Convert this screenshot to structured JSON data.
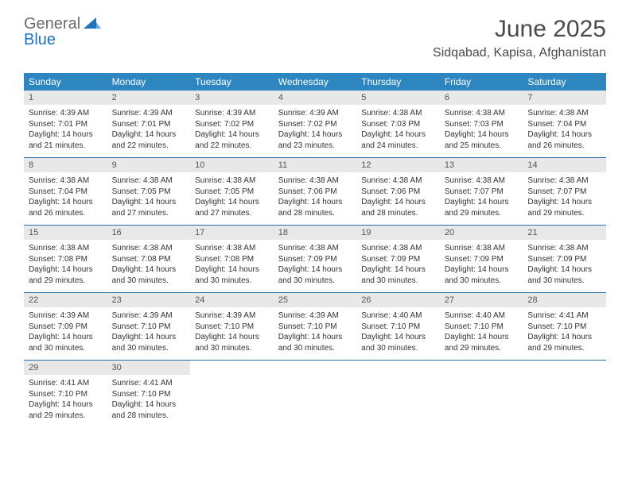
{
  "brand": {
    "name_part1": "General",
    "name_part2": "Blue"
  },
  "title": "June 2025",
  "location": "Sidqabad, Kapisa, Afghanistan",
  "colors": {
    "header_bg": "#2e86c1",
    "daynum_bg": "#e8e8e8",
    "week_divider": "#2e6da4",
    "logo_gray": "#6b6b6b",
    "logo_blue": "#1e73be",
    "title_color": "#4a4a4a"
  },
  "weekdays": [
    "Sunday",
    "Monday",
    "Tuesday",
    "Wednesday",
    "Thursday",
    "Friday",
    "Saturday"
  ],
  "weeks": [
    [
      {
        "day": "1",
        "sunrise": "Sunrise: 4:39 AM",
        "sunset": "Sunset: 7:01 PM",
        "daylight": "Daylight: 14 hours and 21 minutes."
      },
      {
        "day": "2",
        "sunrise": "Sunrise: 4:39 AM",
        "sunset": "Sunset: 7:01 PM",
        "daylight": "Daylight: 14 hours and 22 minutes."
      },
      {
        "day": "3",
        "sunrise": "Sunrise: 4:39 AM",
        "sunset": "Sunset: 7:02 PM",
        "daylight": "Daylight: 14 hours and 22 minutes."
      },
      {
        "day": "4",
        "sunrise": "Sunrise: 4:39 AM",
        "sunset": "Sunset: 7:02 PM",
        "daylight": "Daylight: 14 hours and 23 minutes."
      },
      {
        "day": "5",
        "sunrise": "Sunrise: 4:38 AM",
        "sunset": "Sunset: 7:03 PM",
        "daylight": "Daylight: 14 hours and 24 minutes."
      },
      {
        "day": "6",
        "sunrise": "Sunrise: 4:38 AM",
        "sunset": "Sunset: 7:03 PM",
        "daylight": "Daylight: 14 hours and 25 minutes."
      },
      {
        "day": "7",
        "sunrise": "Sunrise: 4:38 AM",
        "sunset": "Sunset: 7:04 PM",
        "daylight": "Daylight: 14 hours and 26 minutes."
      }
    ],
    [
      {
        "day": "8",
        "sunrise": "Sunrise: 4:38 AM",
        "sunset": "Sunset: 7:04 PM",
        "daylight": "Daylight: 14 hours and 26 minutes."
      },
      {
        "day": "9",
        "sunrise": "Sunrise: 4:38 AM",
        "sunset": "Sunset: 7:05 PM",
        "daylight": "Daylight: 14 hours and 27 minutes."
      },
      {
        "day": "10",
        "sunrise": "Sunrise: 4:38 AM",
        "sunset": "Sunset: 7:05 PM",
        "daylight": "Daylight: 14 hours and 27 minutes."
      },
      {
        "day": "11",
        "sunrise": "Sunrise: 4:38 AM",
        "sunset": "Sunset: 7:06 PM",
        "daylight": "Daylight: 14 hours and 28 minutes."
      },
      {
        "day": "12",
        "sunrise": "Sunrise: 4:38 AM",
        "sunset": "Sunset: 7:06 PM",
        "daylight": "Daylight: 14 hours and 28 minutes."
      },
      {
        "day": "13",
        "sunrise": "Sunrise: 4:38 AM",
        "sunset": "Sunset: 7:07 PM",
        "daylight": "Daylight: 14 hours and 29 minutes."
      },
      {
        "day": "14",
        "sunrise": "Sunrise: 4:38 AM",
        "sunset": "Sunset: 7:07 PM",
        "daylight": "Daylight: 14 hours and 29 minutes."
      }
    ],
    [
      {
        "day": "15",
        "sunrise": "Sunrise: 4:38 AM",
        "sunset": "Sunset: 7:08 PM",
        "daylight": "Daylight: 14 hours and 29 minutes."
      },
      {
        "day": "16",
        "sunrise": "Sunrise: 4:38 AM",
        "sunset": "Sunset: 7:08 PM",
        "daylight": "Daylight: 14 hours and 30 minutes."
      },
      {
        "day": "17",
        "sunrise": "Sunrise: 4:38 AM",
        "sunset": "Sunset: 7:08 PM",
        "daylight": "Daylight: 14 hours and 30 minutes."
      },
      {
        "day": "18",
        "sunrise": "Sunrise: 4:38 AM",
        "sunset": "Sunset: 7:09 PM",
        "daylight": "Daylight: 14 hours and 30 minutes."
      },
      {
        "day": "19",
        "sunrise": "Sunrise: 4:38 AM",
        "sunset": "Sunset: 7:09 PM",
        "daylight": "Daylight: 14 hours and 30 minutes."
      },
      {
        "day": "20",
        "sunrise": "Sunrise: 4:38 AM",
        "sunset": "Sunset: 7:09 PM",
        "daylight": "Daylight: 14 hours and 30 minutes."
      },
      {
        "day": "21",
        "sunrise": "Sunrise: 4:38 AM",
        "sunset": "Sunset: 7:09 PM",
        "daylight": "Daylight: 14 hours and 30 minutes."
      }
    ],
    [
      {
        "day": "22",
        "sunrise": "Sunrise: 4:39 AM",
        "sunset": "Sunset: 7:09 PM",
        "daylight": "Daylight: 14 hours and 30 minutes."
      },
      {
        "day": "23",
        "sunrise": "Sunrise: 4:39 AM",
        "sunset": "Sunset: 7:10 PM",
        "daylight": "Daylight: 14 hours and 30 minutes."
      },
      {
        "day": "24",
        "sunrise": "Sunrise: 4:39 AM",
        "sunset": "Sunset: 7:10 PM",
        "daylight": "Daylight: 14 hours and 30 minutes."
      },
      {
        "day": "25",
        "sunrise": "Sunrise: 4:39 AM",
        "sunset": "Sunset: 7:10 PM",
        "daylight": "Daylight: 14 hours and 30 minutes."
      },
      {
        "day": "26",
        "sunrise": "Sunrise: 4:40 AM",
        "sunset": "Sunset: 7:10 PM",
        "daylight": "Daylight: 14 hours and 30 minutes."
      },
      {
        "day": "27",
        "sunrise": "Sunrise: 4:40 AM",
        "sunset": "Sunset: 7:10 PM",
        "daylight": "Daylight: 14 hours and 29 minutes."
      },
      {
        "day": "28",
        "sunrise": "Sunrise: 4:41 AM",
        "sunset": "Sunset: 7:10 PM",
        "daylight": "Daylight: 14 hours and 29 minutes."
      }
    ],
    [
      {
        "day": "29",
        "sunrise": "Sunrise: 4:41 AM",
        "sunset": "Sunset: 7:10 PM",
        "daylight": "Daylight: 14 hours and 29 minutes."
      },
      {
        "day": "30",
        "sunrise": "Sunrise: 4:41 AM",
        "sunset": "Sunset: 7:10 PM",
        "daylight": "Daylight: 14 hours and 28 minutes."
      },
      {
        "day": "",
        "sunrise": "",
        "sunset": "",
        "daylight": ""
      },
      {
        "day": "",
        "sunrise": "",
        "sunset": "",
        "daylight": ""
      },
      {
        "day": "",
        "sunrise": "",
        "sunset": "",
        "daylight": ""
      },
      {
        "day": "",
        "sunrise": "",
        "sunset": "",
        "daylight": ""
      },
      {
        "day": "",
        "sunrise": "",
        "sunset": "",
        "daylight": ""
      }
    ]
  ]
}
